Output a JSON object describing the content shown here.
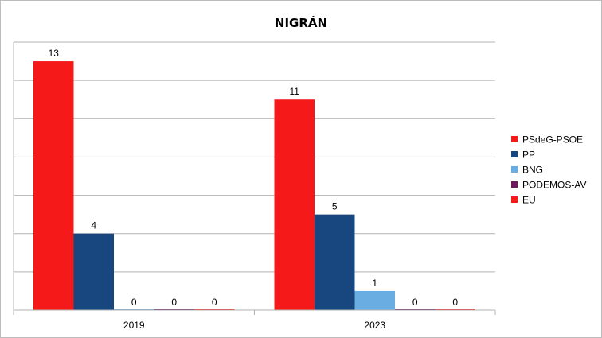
{
  "chart_data": {
    "type": "bar",
    "title": "NIGRÁN",
    "categories": [
      "2019",
      "2023"
    ],
    "series": [
      {
        "name": "PSdeG-PSOE",
        "color": "#f5191a",
        "values": [
          13,
          11
        ]
      },
      {
        "name": "PP",
        "color": "#17477e",
        "values": [
          4,
          5
        ]
      },
      {
        "name": "BNG",
        "color": "#6aade2",
        "values": [
          0,
          1
        ]
      },
      {
        "name": "PODEMOS-AV",
        "color": "#6b1a5c",
        "values": [
          0,
          0
        ]
      },
      {
        "name": "EU",
        "color": "#f5191a",
        "values": [
          0,
          0
        ]
      }
    ],
    "ylim": [
      0,
      14
    ],
    "grid": true,
    "y_tick_labels_shown": false,
    "legend_position": "right"
  }
}
